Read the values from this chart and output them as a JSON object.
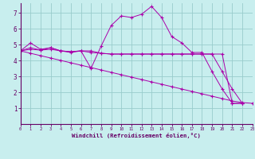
{
  "xlabel": "Windchill (Refroidissement éolien,°C)",
  "bg_color": "#c8eeee",
  "grid_color": "#99cccc",
  "line_color": "#aa00aa",
  "xlim": [
    0,
    23
  ],
  "ylim": [
    0,
    7.6
  ],
  "x_ticks": [
    0,
    1,
    2,
    3,
    4,
    5,
    6,
    7,
    8,
    9,
    10,
    11,
    12,
    13,
    14,
    15,
    16,
    17,
    18,
    19,
    20,
    21,
    22,
    23
  ],
  "y_ticks": [
    1,
    2,
    3,
    4,
    5,
    6,
    7
  ],
  "series": [
    {
      "x": [
        0,
        1,
        2,
        3,
        4,
        5,
        6,
        7,
        8,
        9,
        10,
        11,
        12,
        13,
        14,
        15,
        16,
        17,
        18,
        19,
        20,
        21,
        22,
        23
      ],
      "y": [
        4.6,
        5.1,
        4.7,
        4.8,
        4.6,
        4.5,
        4.6,
        3.5,
        4.9,
        6.2,
        6.8,
        6.7,
        6.9,
        7.4,
        6.7,
        5.5,
        5.1,
        4.5,
        4.5,
        3.3,
        2.2,
        1.3,
        1.3,
        null
      ]
    },
    {
      "x": [
        0,
        1,
        2,
        3,
        4,
        5,
        6,
        7,
        8,
        9,
        10,
        11,
        12,
        13,
        14,
        15,
        16,
        17,
        18,
        19,
        20,
        21,
        22,
        23
      ],
      "y": [
        4.6,
        4.7,
        4.65,
        4.7,
        4.6,
        4.55,
        4.6,
        4.6,
        4.45,
        4.4,
        4.4,
        4.4,
        4.4,
        4.4,
        4.4,
        4.4,
        4.4,
        4.4,
        4.4,
        4.4,
        4.4,
        1.3,
        1.3,
        null
      ]
    },
    {
      "comment": "slightly declining line, ends around 20~3.3, 21~2.2, 22~1.3",
      "x": [
        0,
        1,
        2,
        3,
        4,
        5,
        6,
        7,
        8,
        9,
        10,
        11,
        12,
        13,
        14,
        15,
        16,
        17,
        18,
        19,
        20,
        21,
        22,
        23
      ],
      "y": [
        4.6,
        4.8,
        4.65,
        4.8,
        4.6,
        4.55,
        4.6,
        4.5,
        4.45,
        4.4,
        4.4,
        4.4,
        4.4,
        4.4,
        4.4,
        4.4,
        4.4,
        4.4,
        4.4,
        4.4,
        3.3,
        2.2,
        1.3,
        null
      ]
    },
    {
      "x": [
        0,
        1,
        2,
        3,
        4,
        5,
        6,
        7,
        8,
        9,
        10,
        11,
        12,
        13,
        14,
        15,
        16,
        17,
        18,
        19,
        20,
        21,
        22,
        23
      ],
      "y": [
        4.6,
        4.45,
        4.3,
        4.15,
        4.0,
        3.85,
        3.7,
        3.55,
        3.4,
        3.25,
        3.1,
        2.95,
        2.8,
        2.65,
        2.5,
        2.35,
        2.2,
        2.05,
        1.9,
        1.75,
        1.6,
        1.45,
        1.35,
        1.3
      ]
    }
  ]
}
